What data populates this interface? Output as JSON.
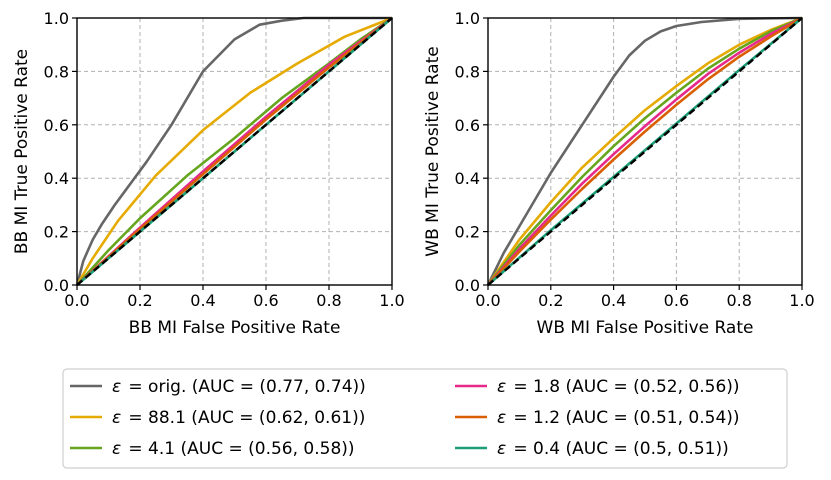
{
  "chart_data": [
    {
      "type": "line",
      "xlabel": "BB MI False Positive Rate",
      "ylabel": "BB MI True Positive Rate",
      "xlim": [
        0,
        1
      ],
      "ylim": [
        0,
        1
      ],
      "grid": true,
      "xticks": [
        "0.0",
        "0.2",
        "0.4",
        "0.6",
        "0.8",
        "1.0"
      ],
      "yticks": [
        "0.0",
        "0.2",
        "0.4",
        "0.6",
        "0.8",
        "1.0"
      ],
      "diagonal": {
        "x": [
          0,
          1
        ],
        "y": [
          0,
          1
        ],
        "color": "#000000",
        "style": "dashed"
      },
      "series": [
        {
          "key": "orig",
          "color": "#666666",
          "x": [
            0,
            0.02,
            0.05,
            0.08,
            0.12,
            0.17,
            0.22,
            0.3,
            0.4,
            0.5,
            0.58,
            0.65,
            0.72,
            0.8,
            1.0
          ],
          "y": [
            0,
            0.09,
            0.17,
            0.23,
            0.3,
            0.38,
            0.46,
            0.6,
            0.8,
            0.92,
            0.975,
            0.99,
            1.0,
            1.0,
            1.0
          ]
        },
        {
          "key": "e88",
          "color": "#e6ab02",
          "x": [
            0,
            0.05,
            0.13,
            0.25,
            0.4,
            0.55,
            0.7,
            0.85,
            1.0
          ],
          "y": [
            0,
            0.1,
            0.24,
            0.41,
            0.58,
            0.72,
            0.83,
            0.93,
            1.0
          ]
        },
        {
          "key": "e4_1",
          "color": "#66a61e",
          "x": [
            0,
            0.1,
            0.2,
            0.35,
            0.5,
            0.65,
            0.8,
            0.9,
            1.0
          ],
          "y": [
            0,
            0.13,
            0.25,
            0.41,
            0.55,
            0.7,
            0.83,
            0.92,
            1.0
          ]
        },
        {
          "key": "e1_8",
          "color": "#e7298a",
          "x": [
            0,
            0.2,
            0.4,
            0.6,
            0.8,
            1.0
          ],
          "y": [
            0,
            0.215,
            0.425,
            0.63,
            0.825,
            1.0
          ]
        },
        {
          "key": "e1_2",
          "color": "#d95f02",
          "x": [
            0,
            0.2,
            0.4,
            0.6,
            0.8,
            1.0
          ],
          "y": [
            0,
            0.21,
            0.415,
            0.62,
            0.815,
            1.0
          ]
        },
        {
          "key": "e0_4",
          "color": "#1b9e77",
          "x": [
            0,
            0.2,
            0.4,
            0.6,
            0.8,
            1.0
          ],
          "y": [
            0,
            0.2,
            0.4,
            0.6,
            0.8,
            1.0
          ]
        }
      ]
    },
    {
      "type": "line",
      "xlabel": "WB MI False Positive Rate",
      "ylabel": "WB MI True Positive Rate",
      "xlim": [
        0,
        1
      ],
      "ylim": [
        0,
        1
      ],
      "grid": true,
      "xticks": [
        "0.0",
        "0.2",
        "0.4",
        "0.6",
        "0.8",
        "1.0"
      ],
      "yticks": [
        "0.0",
        "0.2",
        "0.4",
        "0.6",
        "0.8",
        "1.0"
      ],
      "diagonal": {
        "x": [
          0,
          1
        ],
        "y": [
          0,
          1
        ],
        "color": "#000000",
        "style": "dashed"
      },
      "series": [
        {
          "key": "orig",
          "color": "#666666",
          "x": [
            0,
            0.05,
            0.1,
            0.2,
            0.3,
            0.4,
            0.45,
            0.5,
            0.55,
            0.6,
            0.68,
            0.8,
            1.0
          ],
          "y": [
            0,
            0.12,
            0.22,
            0.42,
            0.6,
            0.78,
            0.86,
            0.915,
            0.95,
            0.97,
            0.985,
            0.997,
            1.0
          ]
        },
        {
          "key": "e88",
          "color": "#e6ab02",
          "x": [
            0,
            0.1,
            0.2,
            0.3,
            0.4,
            0.5,
            0.6,
            0.7,
            0.8,
            0.9,
            1.0
          ],
          "y": [
            0,
            0.17,
            0.31,
            0.44,
            0.55,
            0.655,
            0.745,
            0.83,
            0.9,
            0.955,
            1.0
          ]
        },
        {
          "key": "e4_1",
          "color": "#66a61e",
          "x": [
            0,
            0.1,
            0.2,
            0.3,
            0.4,
            0.5,
            0.6,
            0.7,
            0.8,
            0.9,
            1.0
          ],
          "y": [
            0,
            0.15,
            0.28,
            0.405,
            0.52,
            0.625,
            0.72,
            0.81,
            0.885,
            0.95,
            1.0
          ]
        },
        {
          "key": "e1_8",
          "color": "#e7298a",
          "x": [
            0,
            0.1,
            0.2,
            0.3,
            0.4,
            0.5,
            0.6,
            0.7,
            0.8,
            0.9,
            1.0
          ],
          "y": [
            0,
            0.135,
            0.26,
            0.38,
            0.49,
            0.595,
            0.695,
            0.79,
            0.87,
            0.94,
            1.0
          ]
        },
        {
          "key": "e1_2",
          "color": "#d95f02",
          "x": [
            0,
            0.1,
            0.2,
            0.3,
            0.4,
            0.5,
            0.6,
            0.7,
            0.8,
            0.9,
            1.0
          ],
          "y": [
            0,
            0.125,
            0.245,
            0.36,
            0.47,
            0.575,
            0.675,
            0.77,
            0.855,
            0.93,
            1.0
          ]
        },
        {
          "key": "e0_4",
          "color": "#1b9e77",
          "x": [
            0,
            0.2,
            0.4,
            0.6,
            0.8,
            1.0
          ],
          "y": [
            0,
            0.205,
            0.405,
            0.605,
            0.805,
            1.0
          ]
        }
      ]
    }
  ],
  "legend": {
    "epsilon_symbol": "ε",
    "entries": [
      {
        "key": "orig",
        "color": "#666666",
        "text": " = orig. (AUC = (0.77, 0.74))"
      },
      {
        "key": "e88",
        "color": "#e6ab02",
        "text": " = 88.1 (AUC = (0.62, 0.61))"
      },
      {
        "key": "e4_1",
        "color": "#66a61e",
        "text": " = 4.1 (AUC = (0.56, 0.58))"
      },
      {
        "key": "e1_8",
        "color": "#e7298a",
        "text": " = 1.8 (AUC = (0.52, 0.56))"
      },
      {
        "key": "e1_2",
        "color": "#d95f02",
        "text": " = 1.2 (AUC = (0.51, 0.54))"
      },
      {
        "key": "e0_4",
        "color": "#1b9e77",
        "text": " = 0.4 (AUC = (0.5, 0.51))"
      }
    ]
  }
}
